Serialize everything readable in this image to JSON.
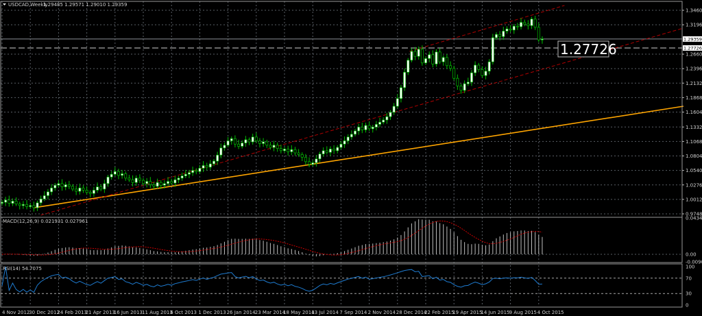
{
  "header": {
    "symbol_label": "USDCAD,Weekly",
    "ohlc": "1.29485 1.29571 1.29010 1.29359"
  },
  "colors": {
    "background": "#000000",
    "grid": "#5a5f66",
    "bull_body": "#ffffff",
    "bear_body": "#000000",
    "candle_outline": "#00c000",
    "trendline": "#ffa500",
    "channel": "#b00000",
    "macd_hist": "#c0c0c0",
    "macd_signal": "#d00000",
    "rsi": "#1e7bd0"
  },
  "chart_data": [
    {
      "type": "candlestick",
      "title": "USDCAD,Weekly",
      "ylim": [
        0.9748,
        1.346
      ],
      "y_ticks": [
        "1.34600",
        "1.31960",
        "1.26600",
        "1.23960",
        "1.21320",
        "1.18680",
        "1.16040",
        "1.13320",
        "1.10680",
        "1.08040",
        "1.05400",
        "1.02760",
        "1.00120",
        "0.97480"
      ],
      "current_price": "1.29359",
      "horizontal_line": "1.27726",
      "x_start": "4 Nov 2012",
      "x_ticks": [
        "4 Nov 2012",
        "30 Dec 2012",
        "24 Feb 2013",
        "21 Apr 2013",
        "16 Jun 2013",
        "11 Aug 2013",
        "6 Oct 2013",
        "1 Dec 2013",
        "26 Jan 2014",
        "23 Mar 2014",
        "18 May 2014",
        "13 Jul 2014",
        "7 Sep 2014",
        "2 Nov 2014",
        "28 Dec 2014",
        "22 Feb 2015",
        "19 Apr 2015",
        "14 Jun 2015",
        "9 Aug 2015",
        "4 Oct 2015"
      ],
      "weekly_close": [
        0.996,
        1.0,
        0.994,
        0.998,
        0.993,
        0.99,
        0.992,
        0.988,
        0.99,
        0.986,
        0.995,
        1.002,
        1.008,
        1.015,
        1.022,
        1.027,
        1.03,
        1.024,
        1.028,
        1.025,
        1.02,
        1.016,
        1.022,
        1.018,
        1.014,
        1.012,
        1.018,
        1.024,
        1.02,
        1.03,
        1.042,
        1.047,
        1.052,
        1.045,
        1.048,
        1.04,
        1.037,
        1.032,
        1.04,
        1.036,
        1.03,
        1.034,
        1.028,
        1.025,
        1.032,
        1.027,
        1.03,
        1.034,
        1.031,
        1.037,
        1.04,
        1.044,
        1.047,
        1.05,
        1.054,
        1.052,
        1.058,
        1.063,
        1.06,
        1.066,
        1.071,
        1.082,
        1.095,
        1.1,
        1.108,
        1.112,
        1.102,
        1.098,
        1.104,
        1.11,
        1.106,
        1.115,
        1.108,
        1.103,
        1.106,
        1.1,
        1.096,
        1.1,
        1.094,
        1.09,
        1.093,
        1.088,
        1.092,
        1.086,
        1.083,
        1.078,
        1.07,
        1.065,
        1.068,
        1.075,
        1.084,
        1.09,
        1.087,
        1.093,
        1.09,
        1.096,
        1.102,
        1.108,
        1.115,
        1.12,
        1.126,
        1.133,
        1.128,
        1.136,
        1.13,
        1.133,
        1.138,
        1.142,
        1.146,
        1.152,
        1.16,
        1.171,
        1.185,
        1.205,
        1.233,
        1.255,
        1.271,
        1.262,
        1.275,
        1.25,
        1.258,
        1.265,
        1.248,
        1.27,
        1.252,
        1.26,
        1.245,
        1.24,
        1.222,
        1.208,
        1.2,
        1.212,
        1.215,
        1.232,
        1.246,
        1.238,
        1.227,
        1.235,
        1.252,
        1.296,
        1.302,
        1.298,
        1.308,
        1.312,
        1.31,
        1.317,
        1.316,
        1.324,
        1.321,
        1.318,
        1.33,
        1.315,
        1.292,
        1.2936
      ],
      "trendlines": [
        {
          "style": "solid",
          "color": "#ffa500",
          "from": {
            "week": 9,
            "price": 0.986
          },
          "to": {
            "week": 193,
            "price": 1.171
          }
        },
        {
          "style": "dashed",
          "color": "#b00000",
          "from": {
            "week": 11,
            "price": 0.9725
          },
          "to": {
            "week": 193,
            "price": 1.3135
          }
        },
        {
          "style": "dashed",
          "color": "#b00000",
          "from": {
            "week": 115.4,
            "price": 1.2711
          },
          "to": {
            "week": 159.3,
            "price": 1.3548
          }
        }
      ]
    },
    {
      "type": "line",
      "title": "MACD(12,26,9) 0.021931 0.027961",
      "ylim": [
        -0.009056,
        0.043491
      ],
      "y_ticks": [
        "0.043491",
        "0.00",
        "-0.009056"
      ]
    },
    {
      "type": "line",
      "title": "RSI(14) 54.7075",
      "ylim": [
        0,
        100
      ],
      "y_ticks": [
        "100",
        "70",
        "30",
        "0"
      ]
    }
  ]
}
